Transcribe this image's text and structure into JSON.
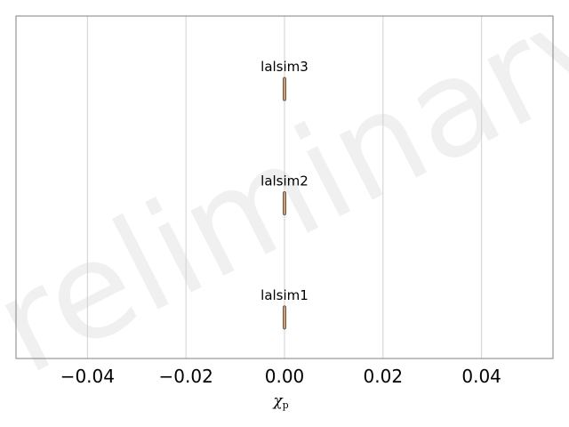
{
  "chart_data": {
    "type": "scatter",
    "watermark": "Preliminary",
    "xlabel": "χ",
    "xlabel_sub": "p",
    "xlim": [
      -0.0545,
      0.0545
    ],
    "xticks": [
      -0.04,
      -0.02,
      0.0,
      0.02,
      0.04
    ],
    "xtick_labels": [
      "−0.04",
      "−0.02",
      "0.00",
      "0.02",
      "0.04"
    ],
    "grid": "vertical",
    "series": [
      {
        "name": "lalsim3",
        "x_median": 0.0,
        "x_low": -0.0001,
        "x_high": 0.0001
      },
      {
        "name": "lalsim2",
        "x_median": 0.0,
        "x_low": -0.0001,
        "x_high": 0.0001
      },
      {
        "name": "lalsim1",
        "x_median": 0.0,
        "x_low": -0.0001,
        "x_high": 0.0001
      }
    ],
    "colors": {
      "violin_fill": "#c8a080",
      "violin_edge": "#7a5a3a",
      "grid": "#d0d0d0",
      "frame": "#808080"
    }
  }
}
